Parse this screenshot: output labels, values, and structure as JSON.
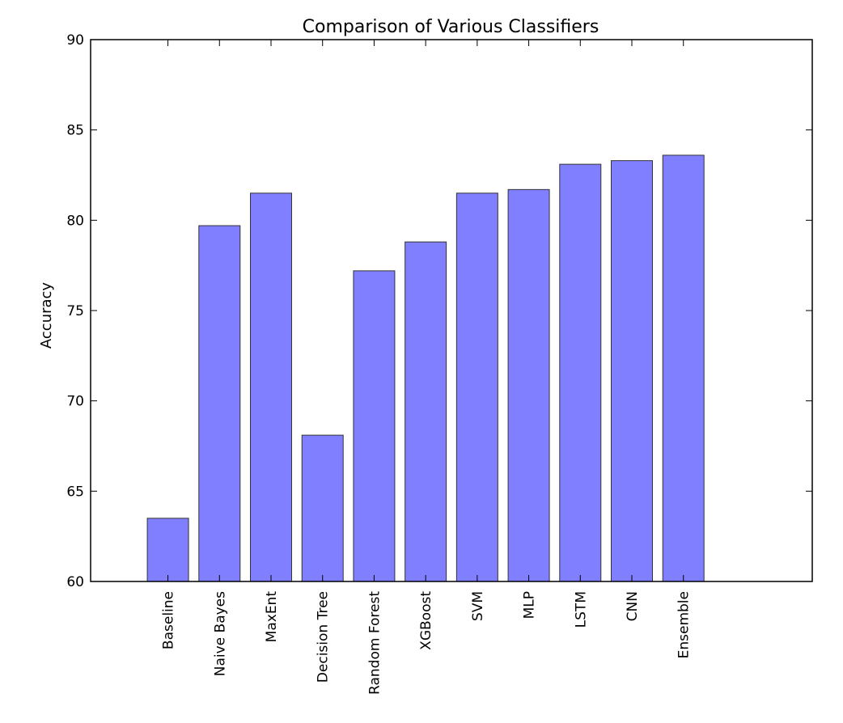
{
  "chart_data": {
    "type": "bar",
    "title": "Comparison of Various Classifiers",
    "xlabel": "",
    "ylabel": "Accuracy",
    "categories": [
      "Baseline",
      "Naive Bayes",
      "MaxEnt",
      "Decision Tree",
      "Random Forest",
      "XGBoost",
      "SVM",
      "MLP",
      "LSTM",
      "CNN",
      "Ensemble"
    ],
    "values": [
      63.5,
      79.7,
      81.5,
      68.1,
      77.2,
      78.8,
      81.5,
      81.7,
      83.1,
      83.3,
      83.6
    ],
    "ylim": [
      60,
      90
    ],
    "yticks": [
      60,
      65,
      70,
      75,
      80,
      85,
      90
    ],
    "x_range": [
      -1.5,
      12.5
    ],
    "grid": false,
    "bar_color": "#7f7fff",
    "edge_color": "#333333"
  }
}
